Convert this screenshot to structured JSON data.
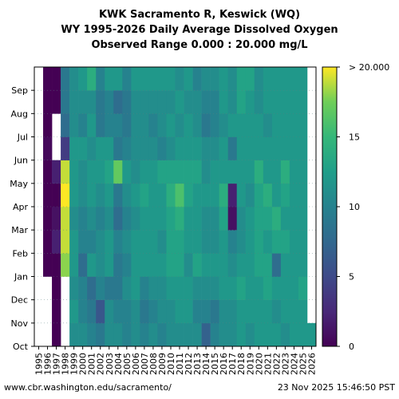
{
  "chart_data": {
    "type": "heatmap",
    "title": [
      "KWK Sacramento R, Keswick (WQ)",
      "WY 1995-2026 Daily Average Dissolved Oxygen",
      "Observed Range 0.000 : 20.000 mg/L"
    ],
    "xlabel": "",
    "ylabel": "",
    "x_categories": [
      "1995",
      "1996",
      "1997",
      "1998",
      "1999",
      "2000",
      "2001",
      "2002",
      "2003",
      "2004",
      "2005",
      "2006",
      "2007",
      "2008",
      "2009",
      "2010",
      "2011",
      "2012",
      "2013",
      "2014",
      "2015",
      "2016",
      "2017",
      "2018",
      "2019",
      "2020",
      "2021",
      "2022",
      "2023",
      "2024",
      "2025",
      "2026"
    ],
    "y_categories": [
      "Oct",
      "Nov",
      "Dec",
      "Jan",
      "Feb",
      "Mar",
      "Apr",
      "May",
      "Jun",
      "Jul",
      "Aug",
      "Sep"
    ],
    "value_range": [
      0,
      20
    ],
    "units": "mg/L",
    "colormap": "viridis",
    "colorbar": {
      "ticks": [
        0,
        5,
        10,
        15
      ],
      "tick_labels": [
        "0",
        "5",
        "10",
        "15"
      ],
      "top_label": "> 20.000"
    },
    "monthly_values": [
      [
        null,
        null,
        null,
        null,
        null,
        null,
        null,
        null,
        null,
        null,
        null,
        null
      ],
      [
        null,
        null,
        null,
        0,
        0,
        0,
        0,
        0,
        0.5,
        0,
        0,
        0
      ],
      [
        0,
        0,
        0,
        0,
        2,
        1,
        0,
        2,
        null,
        null,
        0,
        0
      ],
      [
        null,
        null,
        null,
        18,
        19,
        19,
        20,
        19,
        4,
        8,
        9,
        9
      ],
      [
        11,
        12,
        11,
        12,
        12,
        11,
        12,
        12,
        12,
        11,
        11,
        11
      ],
      [
        11,
        10,
        10,
        8,
        10,
        10,
        11,
        11,
        12,
        10,
        11,
        12
      ],
      [
        10,
        9,
        8,
        12,
        10,
        11,
        12,
        12,
        11,
        12,
        11,
        14
      ],
      [
        9,
        6,
        10,
        11,
        11,
        10,
        11,
        12,
        12,
        9,
        9,
        10
      ],
      [
        11,
        11,
        9,
        12,
        12,
        11,
        12,
        13,
        12,
        10,
        10,
        12
      ],
      [
        11,
        10,
        9,
        9,
        10,
        8,
        9,
        17,
        9,
        10,
        8,
        12
      ],
      [
        10,
        10,
        11,
        10,
        11,
        10,
        11,
        12,
        10,
        9,
        9,
        10
      ],
      [
        11,
        11,
        12,
        12,
        12,
        11,
        12,
        11,
        11,
        11,
        11,
        12
      ],
      [
        10,
        9,
        10,
        12,
        12,
        12,
        13,
        12,
        11,
        11,
        11,
        12
      ],
      [
        11,
        10,
        11,
        12,
        12,
        12,
        12,
        12,
        11,
        10,
        11,
        12
      ],
      [
        10,
        11,
        11,
        12,
        11,
        12,
        12,
        13,
        10,
        11,
        11,
        12
      ],
      [
        11,
        11,
        12,
        13,
        13,
        13,
        14,
        13,
        11,
        12,
        11,
        12
      ],
      [
        11,
        12,
        12,
        13,
        13,
        14,
        16,
        13,
        12,
        11,
        12,
        11
      ],
      [
        11,
        12,
        12,
        11,
        12,
        12,
        13,
        13,
        12,
        12,
        11,
        12
      ],
      [
        11,
        10,
        11,
        13,
        12,
        12,
        12,
        13,
        12,
        11,
        11,
        10
      ],
      [
        7,
        10,
        11,
        12,
        11,
        11,
        12,
        11,
        11,
        9,
        10,
        11
      ],
      [
        10,
        9,
        11,
        12,
        11,
        11,
        12,
        12,
        11,
        10,
        10,
        11
      ],
      [
        11,
        11,
        12,
        12,
        12,
        13,
        14,
        12,
        12,
        11,
        12,
        12
      ],
      [
        11,
        11,
        12,
        11,
        10,
        1,
        2,
        12,
        9,
        12,
        11,
        11
      ],
      [
        12,
        12,
        13,
        12,
        11,
        11,
        12,
        12,
        12,
        12,
        13,
        13
      ],
      [
        11,
        12,
        12,
        12,
        12,
        12,
        11,
        12,
        12,
        12,
        12,
        13
      ],
      [
        12,
        12,
        12,
        13,
        13,
        13,
        13,
        14,
        12,
        12,
        11,
        11
      ],
      [
        12,
        12,
        13,
        13,
        12,
        13,
        14,
        12,
        12,
        11,
        12,
        12
      ],
      [
        12,
        11,
        12,
        8,
        13,
        14,
        12,
        12,
        12,
        12,
        12,
        12
      ],
      [
        11,
        12,
        12,
        12,
        13,
        12,
        13,
        14,
        12,
        12,
        12,
        12
      ],
      [
        12,
        12,
        12,
        12,
        12,
        12,
        12,
        12,
        12,
        12,
        12,
        12
      ],
      [
        12,
        12,
        13,
        12,
        12,
        12,
        12,
        12,
        12,
        12,
        12,
        12
      ],
      [
        12,
        null,
        null,
        null,
        null,
        null,
        null,
        null,
        null,
        null,
        null,
        null
      ]
    ]
  },
  "footer": {
    "url": "www.cbr.washington.edu/sacramento/",
    "timestamp": "23 Nov 2025 15:46:50 PST"
  }
}
